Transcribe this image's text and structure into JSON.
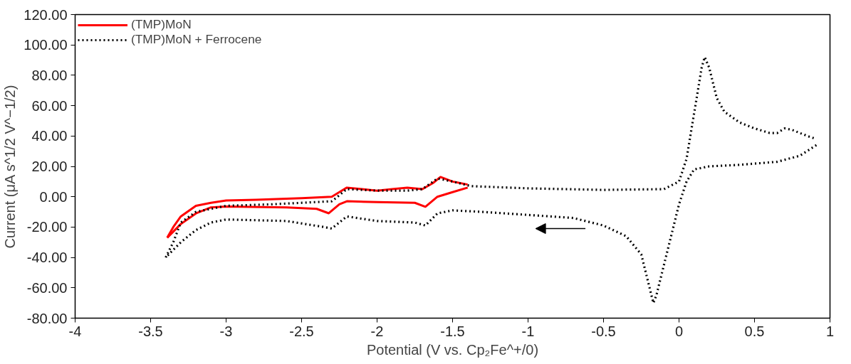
{
  "chart_data": {
    "type": "line",
    "xlabel": "Potential (V vs. Cp₂Fe^+/0)",
    "ylabel": "Current (μA s^1/2 V^−1/2)",
    "xlim": [
      -4,
      1
    ],
    "xticks": [
      -4,
      -3.5,
      -3,
      -2.5,
      -2,
      -1.5,
      -1,
      -0.5,
      0,
      0.5,
      1
    ],
    "ylim": [
      -80,
      120
    ],
    "yticks": [
      {
        "value": -80,
        "label": "-80.00"
      },
      {
        "value": -60,
        "label": "-60.00"
      },
      {
        "value": -40,
        "label": "-40.00"
      },
      {
        "value": -20,
        "label": "-20.00"
      },
      {
        "value": 0,
        "label": "0.00"
      },
      {
        "value": 20,
        "label": "20.00"
      },
      {
        "value": 40,
        "label": "40.00"
      },
      {
        "value": 60,
        "label": "60.00"
      },
      {
        "value": 80,
        "label": "80.00"
      },
      {
        "value": 100,
        "label": "100.00"
      },
      {
        "value": 120,
        "label": "120.00"
      }
    ],
    "grid": false,
    "legend": "top left",
    "marker": "none",
    "series": [
      {
        "name": "(TMP)MoN",
        "color": "#ff0000",
        "line_style": "solid",
        "x": [
          -3.39,
          -3.35,
          -3.3,
          -3.2,
          -3.1,
          -3.0,
          -2.8,
          -2.5,
          -2.3,
          -2.25,
          -2.2,
          -2.1,
          -2.0,
          -1.9,
          -1.8,
          -1.7,
          -1.63,
          -1.58,
          -1.5,
          -1.4
        ],
        "values": [
          -27,
          -20,
          -13,
          -6,
          -4,
          -2.5,
          -2,
          -1,
          0,
          3,
          6,
          5,
          4,
          5,
          6,
          5,
          9,
          13,
          10,
          8
        ]
      },
      {
        "color": "#ff0000",
        "line_style": "solid",
        "x": [
          -1.4,
          -1.5,
          -1.6,
          -1.68,
          -1.75,
          -2.0,
          -2.2,
          -2.25,
          -2.32,
          -2.4,
          -2.6,
          -3.0,
          -3.1,
          -3.2,
          -3.3,
          -3.39
        ],
        "values": [
          6,
          3,
          0,
          -6.6,
          -4,
          -3.5,
          -3,
          -5,
          -10.9,
          -8,
          -7,
          -6.5,
          -7,
          -11,
          -18,
          -27
        ]
      },
      {
        "name": "(TMP)MoN + Ferrocene",
        "color": "#000000",
        "line_style": "dotted",
        "x": [
          -3.4,
          -3.35,
          -3.3,
          -3.2,
          -3.0,
          -2.7,
          -2.3,
          -2.2,
          -2.0,
          -1.8,
          -1.7,
          -1.6,
          -1.5,
          -1.38,
          -1.0,
          -0.5,
          -0.1,
          0.0,
          0.05,
          0.1,
          0.15,
          0.17,
          0.2,
          0.25,
          0.3,
          0.4,
          0.5,
          0.6,
          0.65,
          0.7,
          0.75,
          0.85,
          0.91
        ],
        "values": [
          -40,
          -30,
          -17,
          -10,
          -6,
          -5,
          -3,
          5,
          4,
          4,
          5,
          12,
          10,
          7,
          5.5,
          4.5,
          5,
          10,
          25,
          55,
          85,
          92,
          85,
          65,
          56,
          49,
          45,
          42,
          42,
          45,
          44,
          40,
          38
        ]
      },
      {
        "color": "#000000",
        "line_style": "dotted",
        "x": [
          0.91,
          0.8,
          0.65,
          0.4,
          0.2,
          0.1,
          0.05,
          0.0,
          -0.05,
          -0.1,
          -0.15,
          -0.17,
          -0.2,
          -0.25,
          -0.35,
          -0.5,
          -0.7,
          -1.0,
          -1.3,
          -1.5,
          -1.6,
          -1.68,
          -1.75,
          -2.0,
          -2.2,
          -2.3,
          -2.35,
          -2.6,
          -3.0,
          -3.1,
          -3.2,
          -3.3,
          -3.4
        ],
        "values": [
          34,
          27,
          23,
          21,
          20,
          18,
          10,
          -5,
          -25,
          -45,
          -65,
          -70,
          -58,
          -38,
          -26,
          -19,
          -14,
          -12,
          -10,
          -9,
          -11,
          -19,
          -17,
          -16,
          -13,
          -21,
          -20,
          -16,
          -15,
          -17,
          -22,
          -30,
          -40
        ]
      }
    ]
  }
}
